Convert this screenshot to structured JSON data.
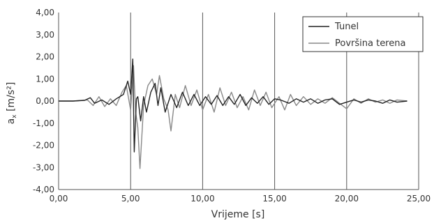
{
  "chart_data": {
    "type": "line",
    "title": "",
    "xlabel": "Vrijeme [s]",
    "ylabel": "a",
    "ylabel_sub": "x",
    "ylabel_unit": " [m/s²]",
    "xlim": [
      0,
      25
    ],
    "ylim": [
      -4,
      4
    ],
    "x_ticks": [
      "0,00",
      "5,00",
      "10,00",
      "15,00",
      "20,00",
      "25,00"
    ],
    "y_ticks": [
      "4,00",
      "3,00",
      "2,00",
      "1,00",
      "0,00",
      "-1,00",
      "-2,00",
      "-3,00",
      "-4,00"
    ],
    "grid": "vertical",
    "legend": "top-right",
    "series": [
      {
        "name": "Tunel",
        "color": "#222222",
        "points": [
          [
            0,
            0
          ],
          [
            1,
            0
          ],
          [
            1.8,
            0.03
          ],
          [
            2.2,
            0.15
          ],
          [
            2.5,
            -0.1
          ],
          [
            3,
            0.05
          ],
          [
            3.5,
            -0.15
          ],
          [
            4,
            0.1
          ],
          [
            4.5,
            0.3
          ],
          [
            4.8,
            0.9
          ],
          [
            5.0,
            0.3
          ],
          [
            5.15,
            1.9
          ],
          [
            5.25,
            -2.3
          ],
          [
            5.4,
            0.1
          ],
          [
            5.5,
            0.2
          ],
          [
            5.7,
            -0.9
          ],
          [
            5.9,
            0.2
          ],
          [
            6.1,
            -0.5
          ],
          [
            6.4,
            0.4
          ],
          [
            6.7,
            0.8
          ],
          [
            6.9,
            -0.2
          ],
          [
            7.1,
            0.6
          ],
          [
            7.4,
            -0.5
          ],
          [
            7.8,
            0.3
          ],
          [
            8.2,
            -0.3
          ],
          [
            8.6,
            0.4
          ],
          [
            9.0,
            -0.2
          ],
          [
            9.4,
            0.3
          ],
          [
            9.8,
            -0.2
          ],
          [
            10.2,
            0.2
          ],
          [
            10.6,
            -0.15
          ],
          [
            11.0,
            0.25
          ],
          [
            11.4,
            -0.2
          ],
          [
            11.8,
            0.2
          ],
          [
            12.2,
            -0.15
          ],
          [
            12.6,
            0.3
          ],
          [
            13.0,
            -0.2
          ],
          [
            13.4,
            0.15
          ],
          [
            13.8,
            -0.1
          ],
          [
            14.2,
            0.2
          ],
          [
            14.6,
            -0.15
          ],
          [
            15.0,
            0.1
          ],
          [
            15.4,
            0.05
          ],
          [
            16.0,
            -0.1
          ],
          [
            16.5,
            0.1
          ],
          [
            17.0,
            -0.05
          ],
          [
            17.5,
            0.1
          ],
          [
            18.0,
            -0.1
          ],
          [
            18.5,
            0.05
          ],
          [
            19.0,
            0.1
          ],
          [
            19.5,
            -0.15
          ],
          [
            20.0,
            -0.05
          ],
          [
            20.5,
            0.05
          ],
          [
            21.0,
            -0.05
          ],
          [
            21.5,
            0.05
          ],
          [
            22.0,
            0
          ],
          [
            22.5,
            -0.1
          ],
          [
            23.0,
            0.05
          ],
          [
            23.5,
            -0.05
          ],
          [
            24.2,
            0
          ]
        ]
      },
      {
        "name": "Površina terena",
        "color": "#888888",
        "points": [
          [
            0,
            0
          ],
          [
            1,
            0
          ],
          [
            2.0,
            0.05
          ],
          [
            2.4,
            -0.2
          ],
          [
            2.8,
            0.2
          ],
          [
            3.2,
            -0.25
          ],
          [
            3.6,
            0.1
          ],
          [
            4.0,
            -0.2
          ],
          [
            4.4,
            0.4
          ],
          [
            4.7,
            0.7
          ],
          [
            5.0,
            -0.4
          ],
          [
            5.2,
            1.6
          ],
          [
            5.35,
            -0.5
          ],
          [
            5.5,
            -1.2
          ],
          [
            5.65,
            -3.05
          ],
          [
            5.9,
            -0.2
          ],
          [
            6.2,
            0.7
          ],
          [
            6.5,
            1.0
          ],
          [
            6.8,
            0.3
          ],
          [
            7.0,
            1.15
          ],
          [
            7.3,
            0.1
          ],
          [
            7.6,
            -0.4
          ],
          [
            7.8,
            -1.35
          ],
          [
            8.1,
            0.3
          ],
          [
            8.4,
            -0.3
          ],
          [
            8.8,
            0.7
          ],
          [
            9.2,
            -0.2
          ],
          [
            9.6,
            0.5
          ],
          [
            10.0,
            -0.4
          ],
          [
            10.4,
            0.3
          ],
          [
            10.8,
            -0.5
          ],
          [
            11.2,
            0.6
          ],
          [
            11.6,
            -0.2
          ],
          [
            12.0,
            0.4
          ],
          [
            12.4,
            -0.3
          ],
          [
            12.8,
            0.2
          ],
          [
            13.2,
            -0.4
          ],
          [
            13.6,
            0.5
          ],
          [
            14.0,
            -0.2
          ],
          [
            14.4,
            0.4
          ],
          [
            14.8,
            -0.3
          ],
          [
            15.3,
            0.2
          ],
          [
            15.7,
            -0.4
          ],
          [
            16.1,
            0.3
          ],
          [
            16.5,
            -0.2
          ],
          [
            17.0,
            0.2
          ],
          [
            17.5,
            -0.15
          ],
          [
            18.0,
            0.1
          ],
          [
            18.5,
            -0.1
          ],
          [
            19.0,
            0.15
          ],
          [
            19.5,
            -0.1
          ],
          [
            20.0,
            -0.35
          ],
          [
            20.5,
            0.1
          ],
          [
            21.0,
            -0.1
          ],
          [
            21.5,
            0.1
          ],
          [
            22.0,
            -0.05
          ],
          [
            22.5,
            0.05
          ],
          [
            23.0,
            -0.1
          ],
          [
            23.5,
            0.05
          ],
          [
            24.2,
            0
          ]
        ]
      }
    ]
  }
}
